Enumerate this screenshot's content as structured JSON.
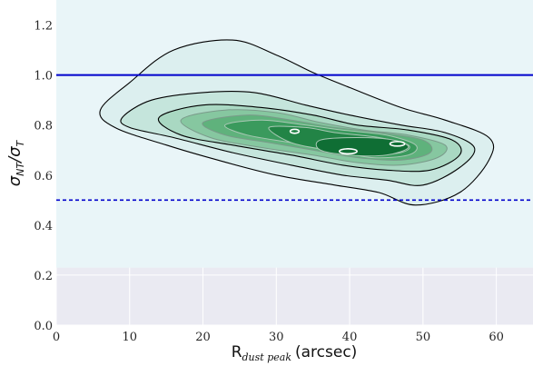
{
  "chart_data": {
    "type": "contour",
    "xlabel": "R",
    "xlabel_sub": "dust peak",
    "xlabel_unit": "(arcsec)",
    "ylabel": "σ",
    "ylabel_sub": "NT",
    "ylabel_mid": "/σ",
    "ylabel_sub2": "T",
    "xlim": [
      0,
      65
    ],
    "ylim": [
      0.0,
      1.3
    ],
    "xticks": [
      0,
      10,
      20,
      30,
      40,
      50,
      60
    ],
    "yticks": [
      0.0,
      0.2,
      0.4,
      0.6,
      0.8,
      1.0,
      1.2
    ],
    "ytick_labels": [
      "0.0",
      "0.2",
      "0.4",
      "0.6",
      "0.8",
      "1.0",
      "1.2"
    ],
    "shaded_region": {
      "y_from": 0.23,
      "y_to": 1.3,
      "color": "#e9f5f8"
    },
    "reference_lines": [
      {
        "y": 1.0,
        "style": "solid",
        "color": "#0000cc"
      },
      {
        "y": 0.5,
        "style": "dashed",
        "color": "#0000cc"
      }
    ],
    "contour_levels": [
      {
        "level": 1,
        "fill": "#dcefef",
        "points": [
          [
            6,
            0.86
          ],
          [
            10,
            0.97
          ],
          [
            16,
            1.1
          ],
          [
            24,
            1.14
          ],
          [
            30,
            1.08
          ],
          [
            35,
            1.01
          ],
          [
            40,
            0.95
          ],
          [
            47,
            0.87
          ],
          [
            53,
            0.82
          ],
          [
            59,
            0.75
          ],
          [
            59,
            0.66
          ],
          [
            55,
            0.53
          ],
          [
            49,
            0.48
          ],
          [
            44,
            0.53
          ],
          [
            38,
            0.56
          ],
          [
            30,
            0.6
          ],
          [
            22,
            0.66
          ],
          [
            15,
            0.72
          ],
          [
            8,
            0.79
          ]
        ]
      },
      {
        "level": 2,
        "fill": "#c5e5dc",
        "points": [
          [
            9,
            0.83
          ],
          [
            13,
            0.9
          ],
          [
            20,
            0.93
          ],
          [
            27,
            0.93
          ],
          [
            34,
            0.88
          ],
          [
            40,
            0.84
          ],
          [
            47,
            0.8
          ],
          [
            53,
            0.77
          ],
          [
            57,
            0.71
          ],
          [
            55,
            0.63
          ],
          [
            50,
            0.56
          ],
          [
            45,
            0.58
          ],
          [
            39,
            0.6
          ],
          [
            32,
            0.64
          ],
          [
            24,
            0.69
          ],
          [
            16,
            0.75
          ],
          [
            10,
            0.79
          ]
        ]
      },
      {
        "level": 3,
        "fill": "#a9d8c2",
        "points": [
          [
            14,
            0.83
          ],
          [
            20,
            0.88
          ],
          [
            28,
            0.87
          ],
          [
            35,
            0.84
          ],
          [
            41,
            0.8
          ],
          [
            48,
            0.78
          ],
          [
            54,
            0.74
          ],
          [
            55,
            0.68
          ],
          [
            51,
            0.62
          ],
          [
            45,
            0.62
          ],
          [
            39,
            0.64
          ],
          [
            32,
            0.68
          ],
          [
            24,
            0.72
          ],
          [
            17,
            0.76
          ]
        ]
      },
      {
        "level": 4,
        "fill": "#86c7a0",
        "points": [
          [
            17,
            0.82
          ],
          [
            23,
            0.86
          ],
          [
            30,
            0.85
          ],
          [
            36,
            0.81
          ],
          [
            42,
            0.78
          ],
          [
            48,
            0.76
          ],
          [
            53,
            0.72
          ],
          [
            52,
            0.67
          ],
          [
            47,
            0.64
          ],
          [
            41,
            0.65
          ],
          [
            35,
            0.68
          ],
          [
            28,
            0.71
          ],
          [
            21,
            0.75
          ]
        ]
      },
      {
        "level": 5,
        "fill": "#5fb27c",
        "points": [
          [
            20,
            0.81
          ],
          [
            26,
            0.84
          ],
          [
            32,
            0.82
          ],
          [
            38,
            0.79
          ],
          [
            44,
            0.77
          ],
          [
            50,
            0.74
          ],
          [
            51,
            0.69
          ],
          [
            47,
            0.66
          ],
          [
            41,
            0.67
          ],
          [
            35,
            0.7
          ],
          [
            29,
            0.73
          ],
          [
            23,
            0.76
          ]
        ]
      },
      {
        "level": 6,
        "fill": "#3a9a5d",
        "points": [
          [
            23,
            0.8
          ],
          [
            28,
            0.82
          ],
          [
            34,
            0.8
          ],
          [
            39,
            0.78
          ],
          [
            45,
            0.76
          ],
          [
            49,
            0.72
          ],
          [
            48,
            0.68
          ],
          [
            43,
            0.67
          ],
          [
            38,
            0.7
          ],
          [
            32,
            0.73
          ],
          [
            26,
            0.76
          ]
        ]
      },
      {
        "level": 7,
        "fill": "#228446",
        "points": [
          [
            29,
            0.79
          ],
          [
            34,
            0.79
          ],
          [
            38,
            0.77
          ],
          [
            44,
            0.75
          ],
          [
            48,
            0.72
          ],
          [
            47,
            0.69
          ],
          [
            42,
            0.68
          ],
          [
            37,
            0.7
          ],
          [
            32,
            0.73
          ]
        ]
      },
      {
        "level": 8,
        "fill": "#0f6e34",
        "points": [
          [
            36,
            0.74
          ],
          [
            41,
            0.75
          ],
          [
            46,
            0.74
          ],
          [
            48,
            0.71
          ],
          [
            45,
            0.68
          ],
          [
            40,
            0.68
          ],
          [
            36,
            0.7
          ]
        ]
      }
    ],
    "peaks": [
      {
        "x": 32.5,
        "y": 0.775,
        "rx": 0.6,
        "ry": 0.008
      },
      {
        "x": 39.8,
        "y": 0.695,
        "rx": 1.2,
        "ry": 0.01
      },
      {
        "x": 46.5,
        "y": 0.725,
        "rx": 1.0,
        "ry": 0.009
      }
    ],
    "colors": {
      "plot_bg": "#eaeaf2",
      "grid": "#ffffff",
      "contour_stroke": "#000000",
      "inner_stroke": "#ffffff"
    }
  }
}
